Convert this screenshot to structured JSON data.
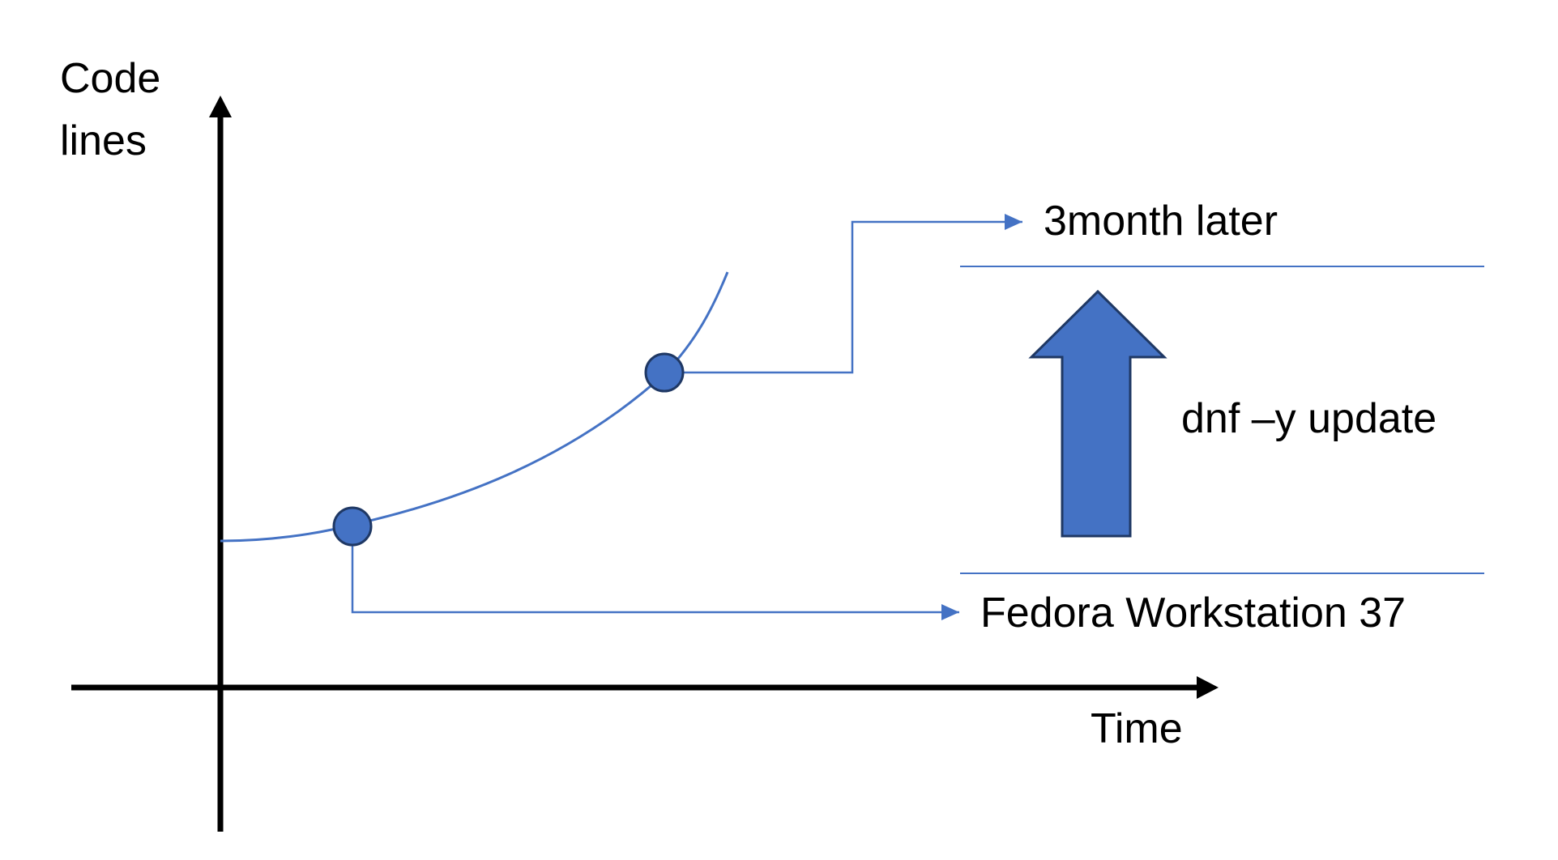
{
  "axes": {
    "y_label_line1": "Code",
    "y_label_line2": "lines",
    "x_label": "Time"
  },
  "points": {
    "first_label": "Fedora Workstation 37",
    "second_label": "3month later"
  },
  "update": {
    "command_label": "dnf –y update"
  },
  "colors": {
    "axis": "#000000",
    "curve": "#4472c4",
    "point_fill": "#4472c4",
    "point_stroke": "#1f3864",
    "arrow_fill": "#4472c4",
    "arrow_stroke": "#1f3864"
  }
}
